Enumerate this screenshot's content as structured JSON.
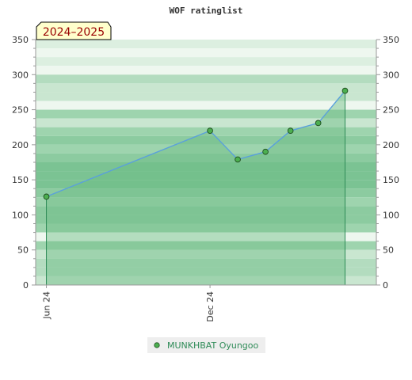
{
  "chart_data": {
    "type": "area",
    "title": "WOF ratinglist",
    "season_label": "2024–2025",
    "xlabel": "",
    "ylabel": "",
    "x_domain": [
      "2024-05-20",
      "2025-06-05"
    ],
    "ylim": [
      0,
      350
    ],
    "y_major_ticks": [
      0,
      50,
      100,
      150,
      200,
      250,
      300,
      350
    ],
    "y_minor_step": 12.5,
    "x_ticks": [
      {
        "date": "2024-06-01",
        "label": "Jun 24"
      },
      {
        "date": "2024-12-01",
        "label": "Dec 24"
      }
    ],
    "series": [
      {
        "name": "MUNKHBAT Oyungoo",
        "points": [
          {
            "x": "2024-06-01",
            "y": 126
          },
          {
            "x": "2024-12-01",
            "y": 220
          },
          {
            "x": "2025-01-01",
            "y": 179
          },
          {
            "x": "2025-02-01",
            "y": 190
          },
          {
            "x": "2025-03-01",
            "y": 220
          },
          {
            "x": "2025-04-01",
            "y": 231
          },
          {
            "x": "2025-05-01",
            "y": 277
          }
        ]
      }
    ],
    "grid": true,
    "legend_position": "bottom-center",
    "colors": {
      "band_light": "#eef7ef",
      "band_1": "#dcefe0",
      "band_2": "#c9e6d0",
      "band_3": "#b3dcbf",
      "band_4": "#9ed4ae",
      "band_5": "#8ccba0",
      "band_6": "#7bc393",
      "area_fill": "#6cbd86",
      "area_opacity": "0.45",
      "line": "#5aa0dc",
      "marker_fill": "#4caf50",
      "marker_stroke": "#1e4d1e",
      "drop_line": "#2e8b57",
      "axis": "#999999",
      "season_fill": "#ffffcc",
      "season_stroke": "#000000",
      "legend_bg": "#eeeeee",
      "legend_text": "#2e8b57"
    }
  }
}
